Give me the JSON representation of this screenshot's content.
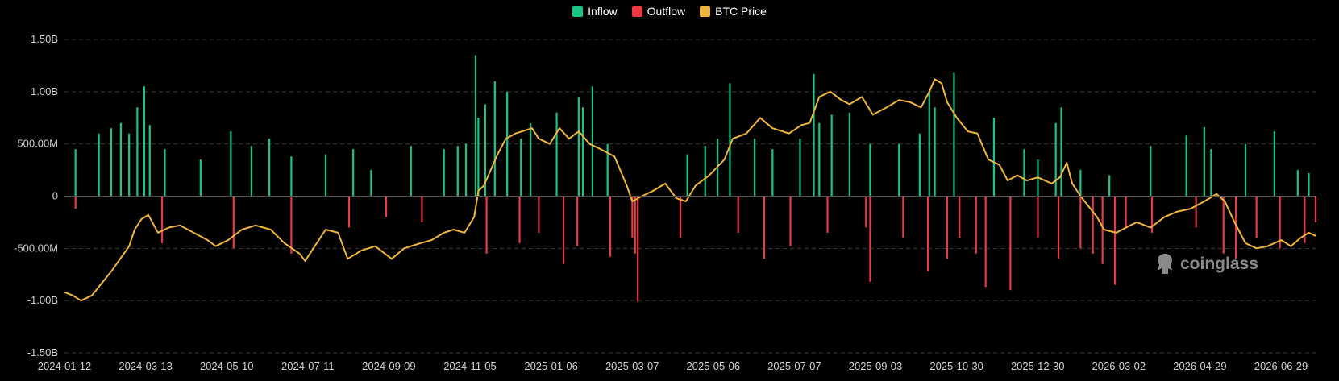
{
  "legend": {
    "items": [
      {
        "label": "Inflow",
        "color": "#16c784"
      },
      {
        "label": "Outflow",
        "color": "#ea3943"
      },
      {
        "label": "BTC Price",
        "color": "#f0b53c"
      }
    ]
  },
  "watermark": {
    "text": "coinglass"
  },
  "chart_data": {
    "type": "bar",
    "legend_position": "top-center",
    "grid": true,
    "y_axis": {
      "ticks": [
        1.5,
        1.0,
        0.5,
        0,
        -0.5,
        -1.0,
        -1.5
      ],
      "tick_labels": [
        "1.50B",
        "1.00B",
        "500.00M",
        "0",
        "-500.00M",
        "-1.00B",
        "-1.50B"
      ],
      "ylim": [
        -1.5,
        1.5
      ],
      "unit": "B"
    },
    "x_axis": {
      "tick_labels": [
        "2024-01-12",
        "2024-03-13",
        "2024-05-10",
        "2024-07-11",
        "2024-09-09",
        "2024-11-05",
        "2025-01-06",
        "2025-03-07",
        "2025-05-06",
        "2025-07-07",
        "2025-09-03",
        "2025-10-30",
        "2025-12-30",
        "2026-03-02",
        "2026-04-29",
        "2026-06-29"
      ],
      "range": [
        "2024-01-12",
        "2026-07-10"
      ]
    },
    "series": [
      {
        "name": "Inflow",
        "kind": "bar",
        "color": "#16c784",
        "x": [
          "2024-01-20",
          "2024-02-06",
          "2024-02-15",
          "2024-02-22",
          "2024-02-28",
          "2024-03-05",
          "2024-03-10",
          "2024-03-14",
          "2024-03-25",
          "2024-04-20",
          "2024-05-12",
          "2024-05-27",
          "2024-06-09",
          "2024-06-25",
          "2024-07-20",
          "2024-08-09",
          "2024-08-22",
          "2024-09-20",
          "2024-10-14",
          "2024-10-24",
          "2024-10-30",
          "2024-11-06",
          "2024-11-08",
          "2024-11-13",
          "2024-11-20",
          "2024-11-29",
          "2024-12-09",
          "2024-12-16",
          "2025-01-04",
          "2025-01-20",
          "2025-01-23",
          "2025-01-30",
          "2025-02-10",
          "2025-04-09",
          "2025-04-22",
          "2025-05-01",
          "2025-05-10",
          "2025-05-28",
          "2025-06-10",
          "2025-06-30",
          "2025-07-10",
          "2025-07-14",
          "2025-07-23",
          "2025-08-05",
          "2025-08-20",
          "2025-09-10",
          "2025-09-25",
          "2025-10-02",
          "2025-10-06",
          "2025-10-20",
          "2025-11-18",
          "2025-12-10",
          "2025-12-20",
          "2026-01-02",
          "2026-01-06",
          "2026-01-20",
          "2026-02-10",
          "2026-03-12",
          "2026-04-07",
          "2026-04-20",
          "2026-04-25",
          "2026-05-20",
          "2026-06-10",
          "2026-06-27",
          "2026-07-05"
        ],
        "values": [
          0.45,
          0.6,
          0.65,
          0.7,
          0.6,
          0.85,
          1.05,
          0.68,
          0.45,
          0.35,
          0.62,
          0.48,
          0.55,
          0.38,
          0.4,
          0.45,
          0.25,
          0.48,
          0.45,
          0.48,
          0.5,
          1.35,
          0.75,
          0.88,
          1.1,
          1.0,
          0.55,
          0.7,
          0.8,
          0.95,
          0.85,
          1.05,
          0.5,
          0.4,
          0.48,
          0.55,
          1.08,
          0.55,
          0.45,
          0.55,
          1.17,
          0.7,
          0.78,
          0.8,
          0.5,
          0.5,
          0.6,
          1.0,
          0.85,
          1.18,
          0.75,
          0.45,
          0.35,
          0.7,
          0.85,
          0.25,
          0.2,
          0.48,
          0.58,
          0.66,
          0.45,
          0.5,
          0.62,
          0.25,
          0.22
        ]
      },
      {
        "name": "Outflow",
        "kind": "bar",
        "color": "#ea3943",
        "x": [
          "2024-01-20",
          "2024-03-23",
          "2024-05-14",
          "2024-06-25",
          "2024-08-06",
          "2024-09-02",
          "2024-09-28",
          "2024-11-14",
          "2024-12-08",
          "2024-12-22",
          "2025-01-09",
          "2025-01-19",
          "2025-02-12",
          "2025-02-28",
          "2025-03-02",
          "2025-03-04",
          "2025-04-04",
          "2025-05-16",
          "2025-06-04",
          "2025-06-23",
          "2025-07-20",
          "2025-08-17",
          "2025-08-20",
          "2025-09-13",
          "2025-10-01",
          "2025-10-15",
          "2025-10-24",
          "2025-11-05",
          "2025-11-12",
          "2025-11-30",
          "2025-12-20",
          "2026-01-04",
          "2026-01-20",
          "2026-01-29",
          "2026-02-05",
          "2026-02-14",
          "2026-02-22",
          "2026-03-13",
          "2026-04-14",
          "2026-05-04",
          "2026-05-13",
          "2026-05-28",
          "2026-06-14",
          "2026-07-02",
          "2026-07-10"
        ],
        "values": [
          -0.12,
          -0.45,
          -0.5,
          -0.55,
          -0.3,
          -0.2,
          -0.25,
          -0.55,
          -0.45,
          -0.35,
          -0.65,
          -0.48,
          -0.58,
          -0.4,
          -0.55,
          -1.01,
          -0.4,
          -0.35,
          -0.6,
          -0.48,
          -0.35,
          -0.3,
          -0.82,
          -0.4,
          -0.72,
          -0.6,
          -0.4,
          -0.55,
          -0.87,
          -0.9,
          -0.4,
          -0.6,
          -0.5,
          -0.55,
          -0.65,
          -0.85,
          -0.3,
          -0.35,
          -0.3,
          -0.55,
          -0.6,
          -0.4,
          -0.5,
          -0.45,
          -0.25
        ]
      },
      {
        "name": "BTC Price",
        "kind": "line",
        "color": "#f0b53c",
        "x": [
          "2024-01-12",
          "2024-01-18",
          "2024-01-24",
          "2024-02-01",
          "2024-02-15",
          "2024-02-28",
          "2024-03-03",
          "2024-03-08",
          "2024-03-13",
          "2024-03-20",
          "2024-03-28",
          "2024-04-05",
          "2024-04-15",
          "2024-04-25",
          "2024-05-01",
          "2024-05-10",
          "2024-05-20",
          "2024-05-30",
          "2024-06-10",
          "2024-06-20",
          "2024-07-01",
          "2024-07-05",
          "2024-07-11",
          "2024-07-20",
          "2024-07-29",
          "2024-08-05",
          "2024-08-15",
          "2024-08-25",
          "2024-09-06",
          "2024-09-15",
          "2024-09-27",
          "2024-10-05",
          "2024-10-14",
          "2024-10-21",
          "2024-10-29",
          "2024-11-05",
          "2024-11-08",
          "2024-11-12",
          "2024-11-22",
          "2024-11-28",
          "2024-12-05",
          "2024-12-17",
          "2024-12-22",
          "2024-12-30",
          "2025-01-06",
          "2025-01-13",
          "2025-01-20",
          "2025-01-28",
          "2025-02-05",
          "2025-02-15",
          "2025-02-24",
          "2025-02-28",
          "2025-03-07",
          "2025-03-15",
          "2025-03-24",
          "2025-04-01",
          "2025-04-08",
          "2025-04-15",
          "2025-04-25",
          "2025-05-06",
          "2025-05-12",
          "2025-05-22",
          "2025-06-01",
          "2025-06-10",
          "2025-06-22",
          "2025-07-01",
          "2025-07-07",
          "2025-07-14",
          "2025-07-22",
          "2025-07-30",
          "2025-08-05",
          "2025-08-14",
          "2025-08-22",
          "2025-09-01",
          "2025-09-10",
          "2025-09-18",
          "2025-09-26",
          "2025-10-02",
          "2025-10-06",
          "2025-10-11",
          "2025-10-15",
          "2025-10-22",
          "2025-10-30",
          "2025-11-06",
          "2025-11-14",
          "2025-11-22",
          "2025-11-28",
          "2025-12-05",
          "2025-12-12",
          "2025-12-20",
          "2025-12-30",
          "2026-01-05",
          "2026-01-10",
          "2026-01-14",
          "2026-01-20",
          "2026-02-01",
          "2026-02-06",
          "2026-02-15",
          "2026-02-25",
          "2026-03-02",
          "2026-03-12",
          "2026-03-22",
          "2026-03-31",
          "2026-04-10",
          "2026-04-20",
          "2026-04-29",
          "2026-05-05",
          "2026-05-12",
          "2026-05-20",
          "2026-05-28",
          "2026-06-05",
          "2026-06-15",
          "2026-06-22",
          "2026-06-29",
          "2026-07-05",
          "2026-07-10"
        ],
        "values": [
          -0.92,
          -0.95,
          -1.0,
          -0.95,
          -0.72,
          -0.48,
          -0.32,
          -0.22,
          -0.18,
          -0.35,
          -0.3,
          -0.28,
          -0.35,
          -0.42,
          -0.48,
          -0.42,
          -0.32,
          -0.28,
          -0.32,
          -0.45,
          -0.55,
          -0.62,
          -0.5,
          -0.32,
          -0.35,
          -0.6,
          -0.52,
          -0.48,
          -0.6,
          -0.5,
          -0.45,
          -0.42,
          -0.35,
          -0.32,
          -0.35,
          -0.2,
          0.05,
          0.1,
          0.4,
          0.55,
          0.6,
          0.65,
          0.55,
          0.5,
          0.65,
          0.55,
          0.62,
          0.5,
          0.45,
          0.38,
          0.1,
          -0.05,
          0.0,
          0.05,
          0.12,
          -0.02,
          -0.05,
          0.1,
          0.2,
          0.35,
          0.55,
          0.6,
          0.75,
          0.65,
          0.6,
          0.68,
          0.7,
          0.95,
          1.0,
          0.92,
          0.88,
          0.95,
          0.78,
          0.85,
          0.92,
          0.9,
          0.85,
          1.0,
          1.12,
          1.08,
          0.9,
          0.75,
          0.62,
          0.6,
          0.35,
          0.3,
          0.15,
          0.2,
          0.15,
          0.18,
          0.12,
          0.18,
          0.32,
          0.12,
          0.0,
          -0.2,
          -0.32,
          -0.35,
          -0.28,
          -0.25,
          -0.3,
          -0.2,
          -0.15,
          -0.12,
          -0.05,
          0.02,
          -0.05,
          -0.25,
          -0.45,
          -0.5,
          -0.48,
          -0.42,
          -0.48,
          -0.4,
          -0.35,
          -0.38
        ]
      }
    ]
  }
}
